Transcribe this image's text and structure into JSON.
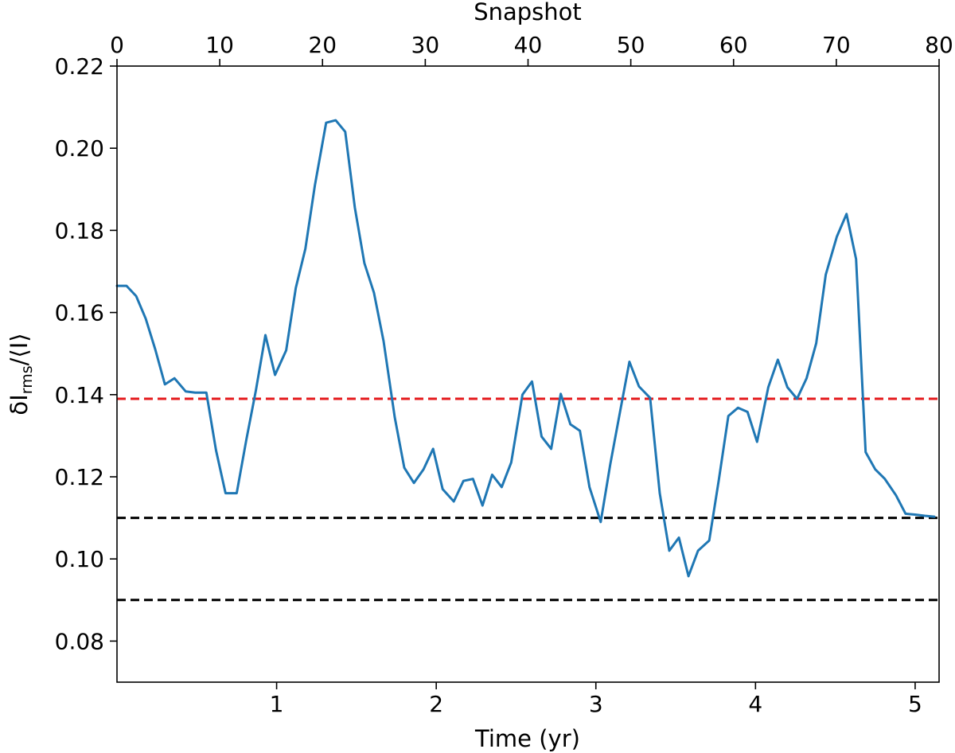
{
  "chart_data": {
    "type": "line",
    "xlabel": "Time (yr)",
    "x2label": "Snapshot",
    "ylabel": {
      "base": "δI",
      "sub": "rms",
      "tail": "/⟨I⟩"
    },
    "xlim": [
      0.0,
      5.15
    ],
    "x2lim": [
      0,
      80
    ],
    "ylim": [
      0.07,
      0.22
    ],
    "xticks": [
      1,
      2,
      3,
      4,
      5
    ],
    "xtick_labels": [
      "1",
      "2",
      "3",
      "4",
      "5"
    ],
    "x2ticks": [
      0,
      10,
      20,
      30,
      40,
      50,
      60,
      70,
      80
    ],
    "x2tick_labels": [
      "0",
      "10",
      "20",
      "30",
      "40",
      "50",
      "60",
      "70",
      "80"
    ],
    "yticks": [
      0.08,
      0.1,
      0.12,
      0.14,
      0.16,
      0.18,
      0.2,
      0.22
    ],
    "ytick_labels": [
      "0.08",
      "0.10",
      "0.12",
      "0.14",
      "0.16",
      "0.18",
      "0.20",
      "0.22"
    ],
    "grid": false,
    "hlines": [
      {
        "y": 0.139,
        "color": "#e41a1c",
        "style": "dashed"
      },
      {
        "y": 0.11,
        "color": "#000000",
        "style": "dashed"
      },
      {
        "y": 0.09,
        "color": "#000000",
        "style": "dashed"
      }
    ],
    "series": [
      {
        "color": "#1f77b4",
        "x": [
          0.0,
          0.06,
          0.12,
          0.18,
          0.24,
          0.3,
          0.36,
          0.43,
          0.49,
          0.56,
          0.62,
          0.68,
          0.75,
          0.81,
          0.87,
          0.93,
          0.99,
          1.06,
          1.12,
          1.18,
          1.24,
          1.31,
          1.37,
          1.43,
          1.49,
          1.55,
          1.61,
          1.67,
          1.74,
          1.8,
          1.86,
          1.92,
          1.98,
          2.04,
          2.11,
          2.17,
          2.23,
          2.29,
          2.35,
          2.41,
          2.47,
          2.54,
          2.6,
          2.66,
          2.72,
          2.78,
          2.84,
          2.9,
          2.96,
          3.03,
          3.09,
          3.15,
          3.21,
          3.27,
          3.34,
          3.4,
          3.46,
          3.52,
          3.58,
          3.64,
          3.71,
          3.77,
          3.83,
          3.89,
          3.95,
          4.01,
          4.08,
          4.14,
          4.2,
          4.26,
          4.32,
          4.38,
          4.44,
          4.51,
          4.57,
          4.63,
          4.69,
          4.75,
          4.81,
          4.88,
          4.94,
          5.0,
          5.06,
          5.12
        ],
        "y": [
          0.1665,
          0.1665,
          0.164,
          0.1585,
          0.151,
          0.1425,
          0.144,
          0.1408,
          0.1405,
          0.1405,
          0.1265,
          0.116,
          0.116,
          0.129,
          0.141,
          0.1545,
          0.1448,
          0.1508,
          0.166,
          0.1755,
          0.191,
          0.2062,
          0.2068,
          0.204,
          0.1855,
          0.172,
          0.1648,
          0.153,
          0.1345,
          0.1222,
          0.1185,
          0.1218,
          0.1268,
          0.117,
          0.114,
          0.119,
          0.1195,
          0.113,
          0.1205,
          0.1175,
          0.1235,
          0.14,
          0.1432,
          0.1298,
          0.1268,
          0.1402,
          0.1328,
          0.1312,
          0.1175,
          0.109,
          0.123,
          0.1355,
          0.148,
          0.142,
          0.1392,
          0.116,
          0.102,
          0.1052,
          0.0958,
          0.102,
          0.1045,
          0.1192,
          0.1348,
          0.1368,
          0.1358,
          0.1285,
          0.1418,
          0.1485,
          0.1418,
          0.139,
          0.144,
          0.1525,
          0.1692,
          0.1785,
          0.184,
          0.173,
          0.126,
          0.1218,
          0.1195,
          0.1155,
          0.111,
          0.1108,
          0.1105,
          0.1103
        ]
      }
    ]
  }
}
